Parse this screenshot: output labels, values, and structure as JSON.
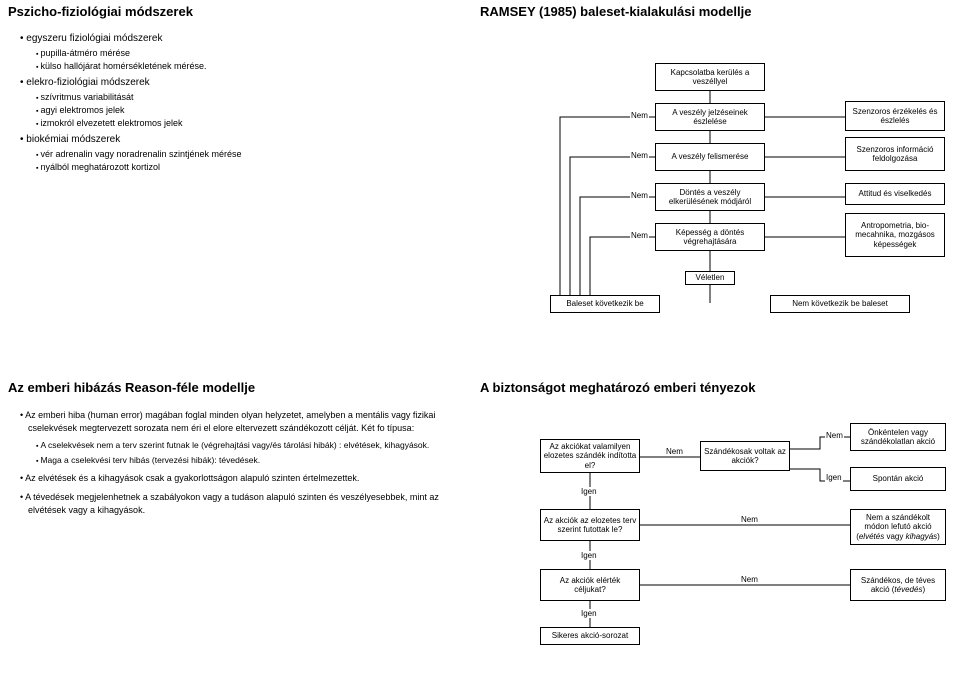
{
  "colors": {
    "bg": "#ffffff",
    "text": "#000000",
    "border": "#000000"
  },
  "top_left": {
    "title": "Pszicho-fiziológiai módszerek",
    "items": [
      {
        "lvl": 1,
        "text": "egyszeru fiziológiai módszerek"
      },
      {
        "lvl": 2,
        "text": "pupilla-átméro mérése"
      },
      {
        "lvl": 2,
        "text": "külso hallójárat homérsékletének mérése."
      },
      {
        "lvl": 1,
        "text": "elekro-fiziológiai módszerek"
      },
      {
        "lvl": 2,
        "text": "szívritmus variabilitását"
      },
      {
        "lvl": 2,
        "text": "agyi elektromos jelek"
      },
      {
        "lvl": 2,
        "text": "izmokról elvezetett elektromos jelek"
      },
      {
        "lvl": 1,
        "text": "biokémiai módszerek"
      },
      {
        "lvl": 2,
        "text": "vér adrenalin vagy noradrenalin szintjének mérése"
      },
      {
        "lvl": 2,
        "text": "nyálból meghatározott kortizol"
      }
    ]
  },
  "top_right": {
    "title": "RAMSEY (1985) baleset-kialakulási modellje",
    "center_boxes": [
      "Kapcsolatba kerülés a veszéllyel",
      "A veszély jelzéseinek észlelése",
      "A veszély felismerése",
      "Döntés a veszély elkerülésének módjáról",
      "Képesség a döntés végrehajtására"
    ],
    "right_boxes": [
      "Szenzoros érzékelés és észlelés",
      "Szenzoros információ feldolgozása",
      "Attitud és viselkedés",
      "Antropometria, bio-mecahnika, mozgásos képességek"
    ],
    "nem_label": "Nem",
    "veletlen": "Véletlen",
    "bottom_left": "Baleset következik be",
    "bottom_right": "Nem következik be baleset"
  },
  "bottom_left": {
    "title": "Az emberi hibázás Reason-féle modellje",
    "paras": [
      {
        "lvl": 1,
        "text": "Az emberi hiba (human error) magában foglal minden olyan helyzetet, amelyben a mentális vagy fizikai cselekvések megtervezett sorozata nem éri el elore eltervezett szándékozott célját. Két fo típusa:"
      },
      {
        "lvl": 2,
        "text": "A cselekvések nem a terv szerint futnak le (végrehajtási vagy/és tárolási hibák) : elvétések, kihagyások."
      },
      {
        "lvl": 2,
        "text": "Maga a cselekvési terv hibás (tervezési hibák): tévedések."
      },
      {
        "lvl": 1,
        "text": "Az elvétések és a kihagyások csak a gyakorlottságon alapuló szinten értelmezettek."
      },
      {
        "lvl": 1,
        "text": "A tévedések megjelenhetnek a szabályokon vagy a tudáson alapuló szinten és veszélyesebbek, mint az elvétések vagy a kihagyások."
      }
    ]
  },
  "bottom_right": {
    "title": "A biztonságot meghatározó emberi tényezok",
    "q_boxes": [
      "Az akciókat valamilyen elozetes szándék indította el?",
      "Az akciók az elozetes terv szerint futottak le?",
      "Az akciók elérték céljukat?"
    ],
    "mid_box": "Szándékosak voltak az akciók?",
    "r_boxes": [
      "Önkéntelen vagy szándékolatlan akció",
      "Spontán akció",
      "Nem a szándékolt módon lefutó akció (elvétés vagy kihagyás)",
      "Szándékos, de téves akció (tévedés)"
    ],
    "bottom_box": "Sikeres akció-sorozat",
    "nem": "Nem",
    "igen": "Igen"
  }
}
